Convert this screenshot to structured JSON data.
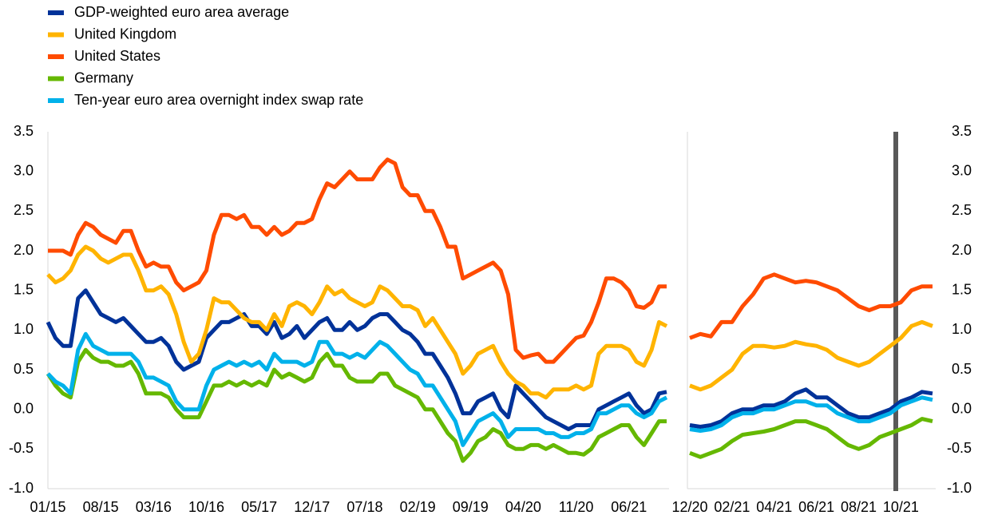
{
  "chart_data": [
    {
      "type": "line",
      "categories": [
        "01/15",
        null,
        null,
        null,
        null,
        null,
        null,
        "08/15",
        null,
        null,
        null,
        null,
        null,
        null,
        "03/16",
        null,
        null,
        null,
        null,
        null,
        null,
        "10/16",
        null,
        null,
        null,
        null,
        null,
        null,
        "05/17",
        null,
        null,
        null,
        null,
        null,
        null,
        "12/17",
        null,
        null,
        null,
        null,
        null,
        null,
        "07/18",
        null,
        null,
        null,
        null,
        null,
        null,
        "02/19",
        null,
        null,
        null,
        null,
        null,
        null,
        "09/19",
        null,
        null,
        null,
        null,
        null,
        null,
        "04/20",
        null,
        null,
        null,
        null,
        null,
        null,
        "11/20",
        null,
        null,
        null,
        null,
        null,
        null,
        "06/21",
        null,
        null,
        null,
        null,
        null
      ],
      "ylim": [
        -1,
        3.5
      ],
      "yticks": [
        {
          "value": -1,
          "label": "-1.0"
        },
        -0.5,
        {
          "value": 0,
          "label": "0.0"
        },
        0.5,
        {
          "value": 1,
          "label": "1.0"
        },
        1.5,
        {
          "value": 2,
          "label": "2.0"
        },
        2.5,
        {
          "value": 3,
          "label": "3.0"
        },
        3.5
      ],
      "series": [
        {
          "name": "GDP-weighted euro area average",
          "color": "#003299",
          "values": [
            1.1,
            0.9,
            0.8,
            0.8,
            1.4,
            1.5,
            1.35,
            1.2,
            1.15,
            1.1,
            1.15,
            1.05,
            0.95,
            0.85,
            0.85,
            0.9,
            0.8,
            0.6,
            0.5,
            0.55,
            0.6,
            0.9,
            1.0,
            1.1,
            1.1,
            1.15,
            1.2,
            1.05,
            1.05,
            0.95,
            1.1,
            0.9,
            0.95,
            1.05,
            0.9,
            1.0,
            1.1,
            1.15,
            1.0,
            1.0,
            1.1,
            1.0,
            1.05,
            1.15,
            1.2,
            1.2,
            1.1,
            1.0,
            0.95,
            0.85,
            0.7,
            0.7,
            0.55,
            0.4,
            0.2,
            -0.05,
            -0.05,
            0.1,
            0.15,
            0.2,
            0.0,
            -0.1,
            0.3,
            0.2,
            0.1,
            0.0,
            -0.1,
            -0.15,
            -0.2,
            -0.25,
            -0.2,
            -0.2,
            -0.2,
            0.0,
            0.05,
            0.1,
            0.15,
            0.2,
            0.05,
            -0.05,
            0.0,
            0.2,
            0.22
          ]
        },
        {
          "name": "United Kingdom",
          "color": "#ffb400",
          "values": [
            1.7,
            1.6,
            1.65,
            1.75,
            1.95,
            2.05,
            2.0,
            1.9,
            1.85,
            1.9,
            1.95,
            1.95,
            1.75,
            1.5,
            1.5,
            1.55,
            1.45,
            1.2,
            0.85,
            0.6,
            0.7,
            1.0,
            1.4,
            1.35,
            1.35,
            1.25,
            1.15,
            1.1,
            1.1,
            1.0,
            1.2,
            1.05,
            1.3,
            1.35,
            1.3,
            1.2,
            1.35,
            1.55,
            1.45,
            1.5,
            1.4,
            1.35,
            1.3,
            1.35,
            1.55,
            1.5,
            1.4,
            1.3,
            1.3,
            1.25,
            1.05,
            1.15,
            1.0,
            0.85,
            0.7,
            0.45,
            0.55,
            0.7,
            0.75,
            0.8,
            0.6,
            0.45,
            0.35,
            0.3,
            0.2,
            0.2,
            0.15,
            0.25,
            0.25,
            0.25,
            0.3,
            0.25,
            0.3,
            0.7,
            0.8,
            0.8,
            0.8,
            0.75,
            0.6,
            0.55,
            0.75,
            1.1,
            1.05
          ]
        },
        {
          "name": "United States",
          "color": "#ff4b00",
          "values": [
            2.0,
            2.0,
            2.0,
            1.95,
            2.2,
            2.35,
            2.3,
            2.2,
            2.15,
            2.1,
            2.25,
            2.25,
            2.0,
            1.8,
            1.85,
            1.8,
            1.8,
            1.6,
            1.5,
            1.55,
            1.6,
            1.75,
            2.2,
            2.45,
            2.45,
            2.4,
            2.45,
            2.3,
            2.3,
            2.2,
            2.3,
            2.2,
            2.25,
            2.35,
            2.35,
            2.4,
            2.65,
            2.85,
            2.8,
            2.9,
            3.0,
            2.9,
            2.9,
            2.9,
            3.05,
            3.15,
            3.1,
            2.8,
            2.7,
            2.7,
            2.5,
            2.5,
            2.3,
            2.05,
            2.05,
            1.65,
            1.7,
            1.75,
            1.8,
            1.85,
            1.75,
            1.45,
            0.75,
            0.65,
            0.68,
            0.7,
            0.6,
            0.6,
            0.7,
            0.8,
            0.9,
            0.93,
            1.1,
            1.35,
            1.65,
            1.65,
            1.6,
            1.5,
            1.3,
            1.28,
            1.35,
            1.55,
            1.55
          ]
        },
        {
          "name": "Germany",
          "color": "#65b800",
          "values": [
            0.45,
            0.3,
            0.2,
            0.15,
            0.6,
            0.75,
            0.65,
            0.6,
            0.6,
            0.55,
            0.55,
            0.6,
            0.45,
            0.2,
            0.2,
            0.2,
            0.15,
            0.0,
            -0.1,
            -0.1,
            -0.1,
            0.1,
            0.3,
            0.3,
            0.35,
            0.3,
            0.35,
            0.3,
            0.35,
            0.3,
            0.5,
            0.4,
            0.45,
            0.4,
            0.35,
            0.4,
            0.6,
            0.7,
            0.55,
            0.55,
            0.4,
            0.35,
            0.35,
            0.35,
            0.45,
            0.45,
            0.3,
            0.25,
            0.2,
            0.15,
            0.0,
            0.0,
            -0.15,
            -0.3,
            -0.4,
            -0.65,
            -0.55,
            -0.4,
            -0.35,
            -0.25,
            -0.3,
            -0.45,
            -0.5,
            -0.5,
            -0.45,
            -0.45,
            -0.5,
            -0.45,
            -0.5,
            -0.55,
            -0.55,
            -0.57,
            -0.5,
            -0.35,
            -0.3,
            -0.25,
            -0.2,
            -0.2,
            -0.35,
            -0.45,
            -0.3,
            -0.15,
            -0.15
          ]
        },
        {
          "name": "Ten-year euro area overnight index swap rate",
          "color": "#00b1ea",
          "values": [
            0.45,
            0.35,
            0.3,
            0.2,
            0.75,
            0.95,
            0.8,
            0.75,
            0.7,
            0.7,
            0.7,
            0.7,
            0.6,
            0.4,
            0.4,
            0.35,
            0.3,
            0.1,
            0.0,
            0.0,
            0.0,
            0.3,
            0.5,
            0.55,
            0.6,
            0.55,
            0.6,
            0.55,
            0.6,
            0.5,
            0.7,
            0.6,
            0.6,
            0.6,
            0.55,
            0.6,
            0.85,
            0.85,
            0.7,
            0.7,
            0.65,
            0.7,
            0.65,
            0.75,
            0.85,
            0.8,
            0.7,
            0.6,
            0.5,
            0.45,
            0.3,
            0.3,
            0.15,
            0.0,
            -0.15,
            -0.45,
            -0.3,
            -0.15,
            -0.1,
            -0.05,
            -0.15,
            -0.35,
            -0.25,
            -0.25,
            -0.25,
            -0.25,
            -0.3,
            -0.3,
            -0.35,
            -0.35,
            -0.3,
            -0.3,
            -0.25,
            -0.05,
            -0.05,
            0.0,
            0.05,
            0.05,
            -0.05,
            -0.1,
            -0.05,
            0.1,
            0.15
          ]
        }
      ]
    },
    {
      "type": "line",
      "categories": [
        "12/20",
        null,
        null,
        null,
        "02/21",
        null,
        null,
        null,
        "04/21",
        null,
        null,
        null,
        "06/21",
        null,
        null,
        null,
        "08/21",
        null,
        null,
        null,
        "10/21",
        null,
        null,
        null
      ],
      "ylim": [
        -1,
        3.5
      ],
      "yticks": [
        {
          "value": -1,
          "label": "-1.0"
        },
        -0.5,
        {
          "value": 0,
          "label": "0.0"
        },
        0.5,
        {
          "value": 1,
          "label": "1.0"
        },
        1.5,
        {
          "value": 2,
          "label": "2.0"
        },
        2.5,
        {
          "value": 3,
          "label": "3.0"
        },
        3.5
      ],
      "series": [
        {
          "color": "#003299",
          "values": [
            -0.2,
            -0.22,
            -0.2,
            -0.15,
            -0.05,
            0.0,
            0.0,
            0.05,
            0.05,
            0.1,
            0.2,
            0.25,
            0.15,
            0.15,
            0.05,
            -0.05,
            -0.1,
            -0.1,
            -0.05,
            0.0,
            0.1,
            0.15,
            0.22,
            0.2
          ]
        },
        {
          "color": "#ffb400",
          "values": [
            0.3,
            0.25,
            0.3,
            0.4,
            0.5,
            0.7,
            0.8,
            0.8,
            0.78,
            0.8,
            0.85,
            0.82,
            0.8,
            0.75,
            0.65,
            0.6,
            0.55,
            0.6,
            0.7,
            0.8,
            0.9,
            1.05,
            1.1,
            1.05
          ]
        },
        {
          "color": "#ff4b00",
          "values": [
            0.9,
            0.95,
            0.92,
            1.1,
            1.1,
            1.3,
            1.45,
            1.65,
            1.7,
            1.65,
            1.6,
            1.62,
            1.6,
            1.55,
            1.5,
            1.4,
            1.3,
            1.25,
            1.3,
            1.3,
            1.35,
            1.5,
            1.55,
            1.55
          ]
        },
        {
          "color": "#65b800",
          "values": [
            -0.55,
            -0.6,
            -0.55,
            -0.5,
            -0.4,
            -0.32,
            -0.3,
            -0.28,
            -0.25,
            -0.2,
            -0.15,
            -0.15,
            -0.2,
            -0.25,
            -0.35,
            -0.45,
            -0.5,
            -0.45,
            -0.35,
            -0.3,
            -0.25,
            -0.2,
            -0.12,
            -0.15
          ]
        },
        {
          "color": "#00b1ea",
          "values": [
            -0.25,
            -0.27,
            -0.25,
            -0.2,
            -0.1,
            -0.05,
            -0.05,
            0.0,
            0.0,
            0.05,
            0.1,
            0.1,
            0.05,
            0.05,
            -0.05,
            -0.1,
            -0.15,
            -0.15,
            -0.1,
            -0.05,
            0.05,
            0.1,
            0.15,
            0.12
          ]
        }
      ]
    }
  ]
}
